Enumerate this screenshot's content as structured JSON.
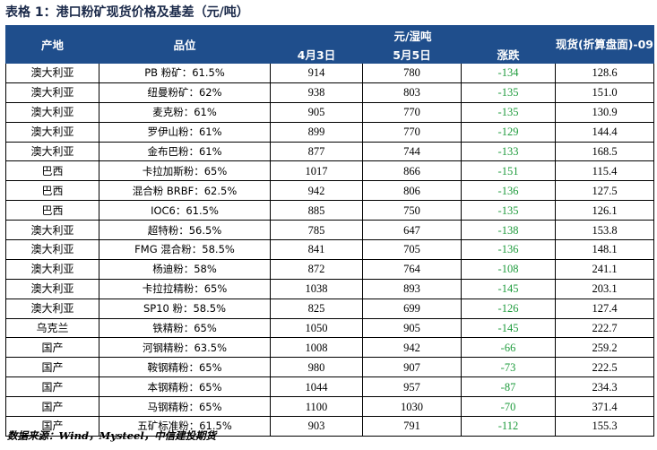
{
  "title": "表格 1：港口粉矿现货价格及基差（元/吨）",
  "header": {
    "region": "产地",
    "product": "品位",
    "group": "元/湿吨",
    "date1": "4月3日",
    "date2": "5月5日",
    "change": "涨跌",
    "spot": "现货(折算盘面)-09"
  },
  "rows": [
    {
      "region": "澳大利亚",
      "product": "PB 粉矿：61.5%",
      "d1": "914",
      "d2": "780",
      "chg": "-134",
      "spot": "128.6"
    },
    {
      "region": "澳大利亚",
      "product": "纽曼粉矿：62%",
      "d1": "938",
      "d2": "803",
      "chg": "-135",
      "spot": "151.0"
    },
    {
      "region": "澳大利亚",
      "product": "麦克粉：61%",
      "d1": "905",
      "d2": "770",
      "chg": "-135",
      "spot": "130.9"
    },
    {
      "region": "澳大利亚",
      "product": "罗伊山粉：61%",
      "d1": "899",
      "d2": "770",
      "chg": "-129",
      "spot": "144.4"
    },
    {
      "region": "澳大利亚",
      "product": "金布巴粉：61%",
      "d1": "877",
      "d2": "744",
      "chg": "-133",
      "spot": "168.5"
    },
    {
      "region": "巴西",
      "product": "卡拉加斯粉：65%",
      "d1": "1017",
      "d2": "866",
      "chg": "-151",
      "spot": "115.4"
    },
    {
      "region": "巴西",
      "product": "混合粉 BRBF：62.5%",
      "d1": "942",
      "d2": "806",
      "chg": "-136",
      "spot": "127.5"
    },
    {
      "region": "巴西",
      "product": "IOC6：61.5%",
      "d1": "885",
      "d2": "750",
      "chg": "-135",
      "spot": "126.1"
    },
    {
      "region": "澳大利亚",
      "product": "超特粉：56.5%",
      "d1": "785",
      "d2": "647",
      "chg": "-138",
      "spot": "153.8"
    },
    {
      "region": "澳大利亚",
      "product": "FMG 混合粉：58.5%",
      "d1": "841",
      "d2": "705",
      "chg": "-136",
      "spot": "148.1"
    },
    {
      "region": "澳大利亚",
      "product": "杨迪粉：58%",
      "d1": "872",
      "d2": "764",
      "chg": "-108",
      "spot": "241.1"
    },
    {
      "region": "澳大利亚",
      "product": "卡拉拉精粉：65%",
      "d1": "1038",
      "d2": "893",
      "chg": "-145",
      "spot": "203.1"
    },
    {
      "region": "澳大利亚",
      "product": "SP10 粉：58.5%",
      "d1": "825",
      "d2": "699",
      "chg": "-126",
      "spot": "127.4"
    },
    {
      "region": "乌克兰",
      "product": "铁精粉：65%",
      "d1": "1050",
      "d2": "905",
      "chg": "-145",
      "spot": "222.7"
    },
    {
      "region": "国产",
      "product": "河钢精粉：63.5%",
      "d1": "1008",
      "d2": "942",
      "chg": "-66",
      "spot": "259.2"
    },
    {
      "region": "国产",
      "product": "鞍钢精粉：65%",
      "d1": "980",
      "d2": "907",
      "chg": "-73",
      "spot": "222.5"
    },
    {
      "region": "国产",
      "product": "本钢精粉：65%",
      "d1": "1044",
      "d2": "957",
      "chg": "-87",
      "spot": "234.3"
    },
    {
      "region": "国产",
      "product": "马钢精粉：65%",
      "d1": "1100",
      "d2": "1030",
      "chg": "-70",
      "spot": "371.4"
    },
    {
      "region": "国产",
      "product": "五矿标准粉：61.5%",
      "d1": "903",
      "d2": "791",
      "chg": "-112",
      "spot": "155.3"
    }
  ],
  "source": "数据来源：Wind，Mysteel，中信建投期货",
  "colors": {
    "header_bg": "#1f4e8c",
    "change_text": "#1e9b3c",
    "title_text": "#1b2a4a"
  }
}
